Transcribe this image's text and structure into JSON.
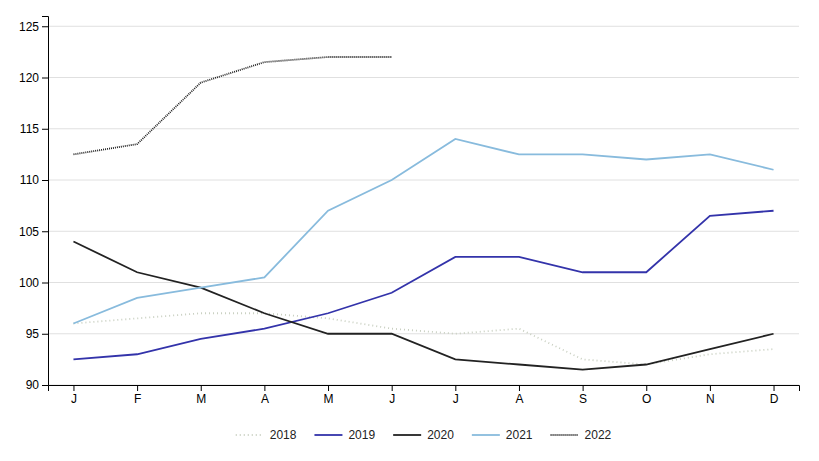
{
  "chart_data": {
    "type": "line",
    "categories": [
      "J",
      "F",
      "M",
      "A",
      "M",
      "J",
      "J",
      "A",
      "S",
      "O",
      "N",
      "D"
    ],
    "series": [
      {
        "name": "2018",
        "color": "#c8cfc0",
        "line_style": "dotted",
        "values": [
          96.0,
          96.5,
          97.0,
          97.0,
          96.5,
          95.5,
          95.0,
          95.5,
          92.5,
          92.0,
          93.0,
          93.5
        ]
      },
      {
        "name": "2019",
        "color": "#3333aa",
        "line_style": "solid",
        "values": [
          92.5,
          93.0,
          94.5,
          95.5,
          97.0,
          99.0,
          102.5,
          102.5,
          101.0,
          101.0,
          106.5,
          107.0
        ]
      },
      {
        "name": "2020",
        "color": "#222222",
        "line_style": "solid",
        "values": [
          104.0,
          101.0,
          99.5,
          97.0,
          95.0,
          95.0,
          92.5,
          92.0,
          91.5,
          92.0,
          93.5,
          95.0
        ]
      },
      {
        "name": "2021",
        "color": "#88bbdd",
        "line_style": "solid",
        "values": [
          96.0,
          98.5,
          99.5,
          100.5,
          107.0,
          110.0,
          114.0,
          112.5,
          112.5,
          112.0,
          112.5,
          111.0
        ]
      },
      {
        "name": "2022",
        "color": "#222222",
        "line_style": "densely_dotted",
        "values": [
          112.5,
          113.5,
          119.5,
          121.5,
          122.0,
          122.0,
          null,
          null,
          null,
          null,
          null,
          null
        ]
      }
    ],
    "ylim": [
      90,
      126
    ],
    "yticks": [
      90,
      95,
      100,
      105,
      110,
      115,
      120,
      125
    ],
    "grid": true,
    "legend": "bottom"
  }
}
